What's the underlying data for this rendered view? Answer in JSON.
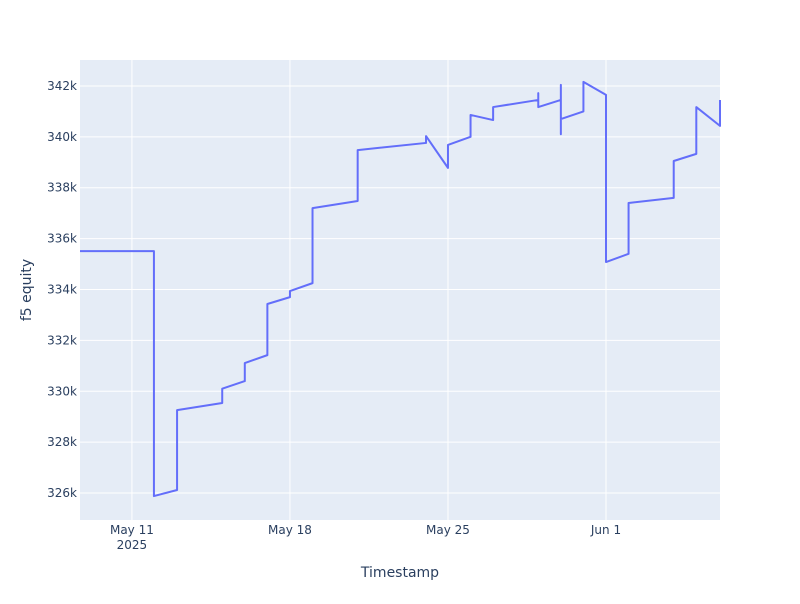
{
  "chart_data": {
    "type": "line",
    "xlabel": "Timestamp",
    "ylabel": "f5 equity",
    "x": [
      "2025-05-08T16:48",
      "2025-05-11T23:24",
      "2025-05-11T23:24",
      "2025-05-13T00:00",
      "2025-05-13T00:00",
      "2025-05-15T00:00",
      "2025-05-15T00:00",
      "2025-05-16T00:00",
      "2025-05-16T00:00",
      "2025-05-17T00:00",
      "2025-05-17T00:00",
      "2025-05-18T00:00",
      "2025-05-18T00:00",
      "2025-05-19T00:00",
      "2025-05-19T00:00",
      "2025-05-21T00:00",
      "2025-05-21T00:00",
      "2025-05-24T00:40",
      "2025-05-24T00:40",
      "2025-05-25T00:00",
      "2025-05-25T00:00",
      "2025-05-26T00:00",
      "2025-05-26T00:00",
      "2025-05-27T00:00",
      "2025-05-27T00:00",
      "2025-05-29T00:00",
      "2025-05-29T00:00",
      "2025-05-29T00:00",
      "2025-05-30T00:00",
      "2025-05-30T00:00",
      "2025-05-30T00:00",
      "2025-05-30T00:00",
      "2025-05-31T00:00",
      "2025-05-31T00:00",
      "2025-06-01T00:00",
      "2025-06-01T00:00",
      "2025-06-02T00:00",
      "2025-06-02T00:00",
      "2025-06-04T00:00",
      "2025-06-04T00:00",
      "2025-06-05T00:00",
      "2025-06-05T00:00",
      "2025-06-06T01:12",
      "2025-06-06T01:12"
    ],
    "series": [
      {
        "name": "f5 equity",
        "color": "#636efa",
        "values": [
          335510,
          335510,
          325880,
          326120,
          329260,
          329540,
          330100,
          330400,
          331110,
          331420,
          333430,
          333700,
          333940,
          334250,
          337200,
          337480,
          339480,
          339760,
          340030,
          338780,
          339680,
          340000,
          340860,
          340660,
          341170,
          341450,
          341720,
          341170,
          341450,
          342040,
          340100,
          340700,
          341000,
          342160,
          341650,
          335080,
          335400,
          337400,
          337600,
          339050,
          339330,
          341170,
          340430,
          341450
        ]
      }
    ],
    "xlim": [
      "2025-05-08T16:48",
      "2025-06-06T01:12"
    ],
    "xticks": [
      {
        "value": "2025-05-11T00:00",
        "label": "May 11",
        "sublabel": "2025"
      },
      {
        "value": "2025-05-18T00:00",
        "label": "May 18"
      },
      {
        "value": "2025-05-25T00:00",
        "label": "May 25"
      },
      {
        "value": "2025-06-01T00:00",
        "label": "Jun 1"
      }
    ],
    "ylim": [
      324940,
      343020
    ],
    "yticks": [
      {
        "value": 326000,
        "label": "326k"
      },
      {
        "value": 328000,
        "label": "328k"
      },
      {
        "value": 330000,
        "label": "330k"
      },
      {
        "value": 332000,
        "label": "332k"
      },
      {
        "value": 334000,
        "label": "334k"
      },
      {
        "value": 336000,
        "label": "336k"
      },
      {
        "value": 338000,
        "label": "338k"
      },
      {
        "value": 340000,
        "label": "340k"
      },
      {
        "value": 342000,
        "label": "342k"
      }
    ],
    "grid": true
  }
}
